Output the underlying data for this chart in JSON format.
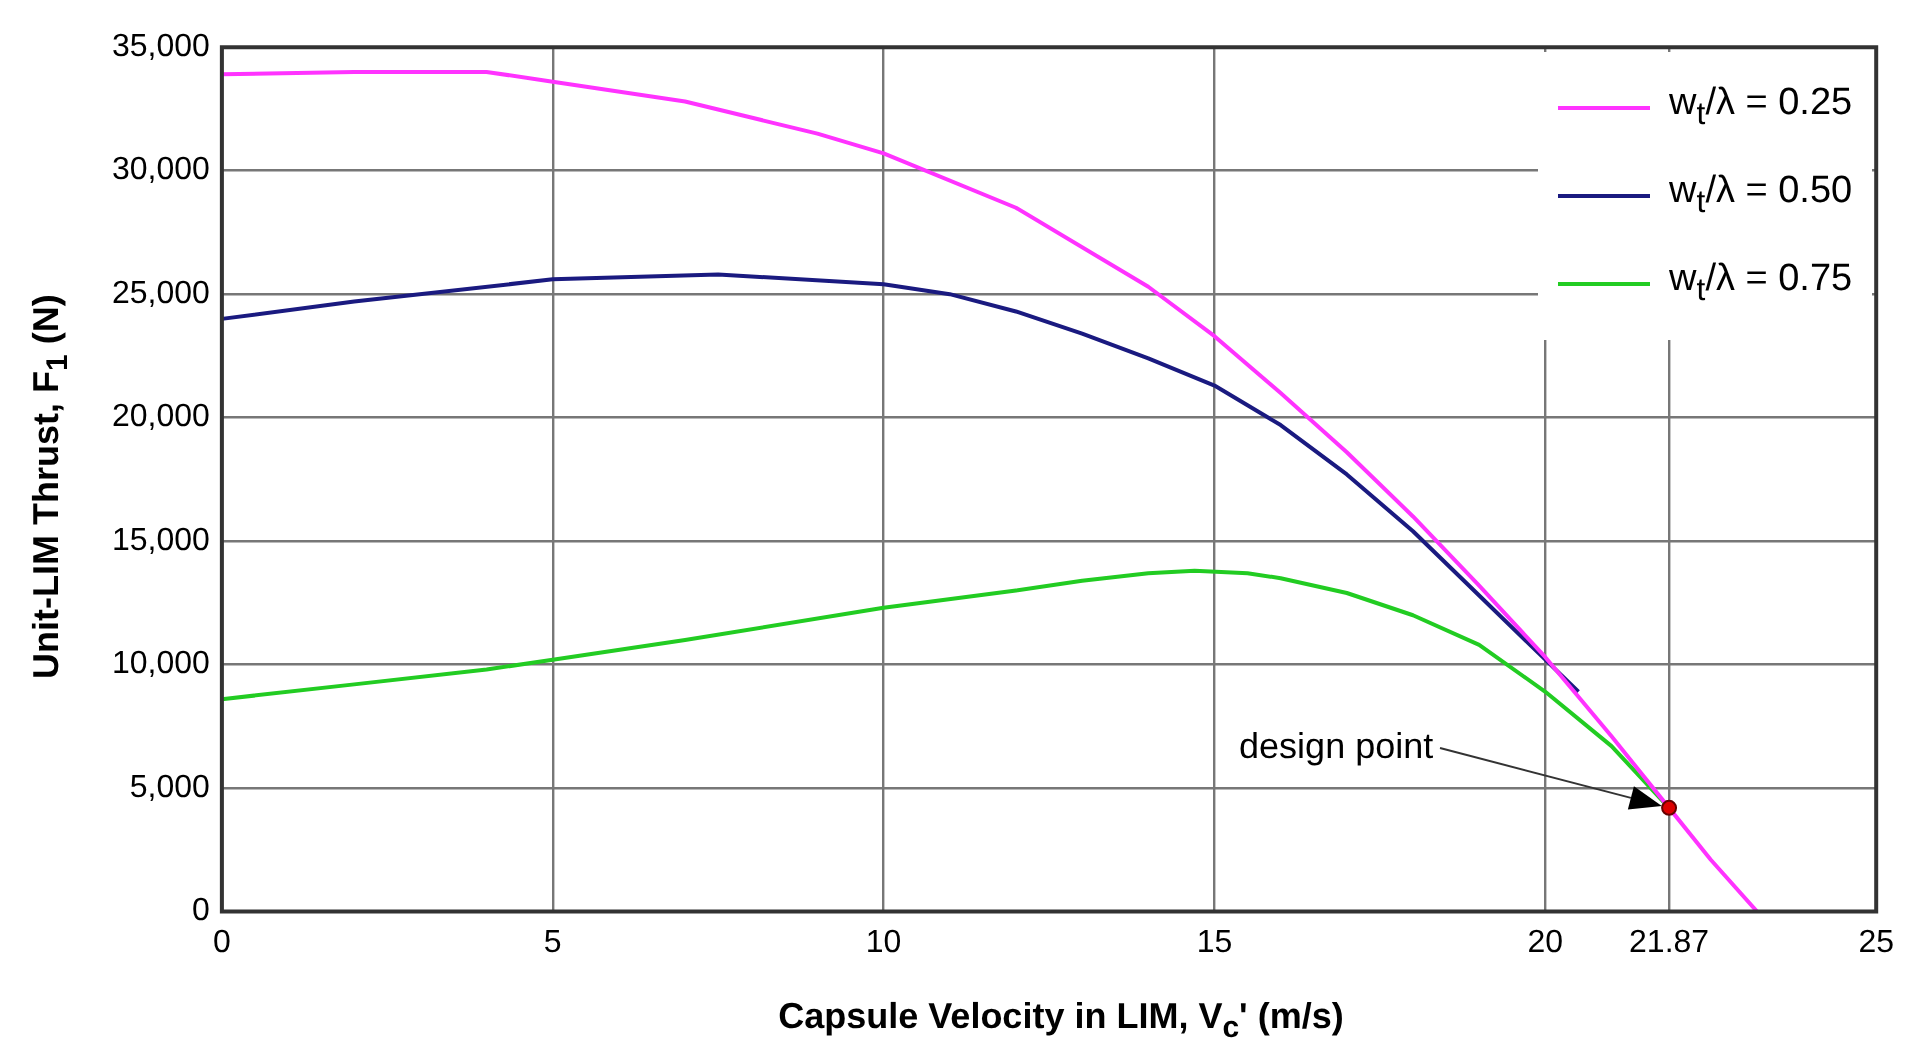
{
  "chart_data": {
    "type": "line",
    "xlabel": "Capsule Velocity in LIM, V$_{c}$' (m/s)",
    "ylabel": "Unit-LIM Thrust, F$_{1}$ (N)",
    "xlim": [
      0,
      25
    ],
    "xticks": [
      0,
      5,
      10,
      15,
      20,
      21.87,
      25
    ],
    "ylim": [
      0,
      35000
    ],
    "yticks": [
      0,
      {
        "value": 5000,
        "label": "5,000"
      },
      {
        "value": 10000,
        "label": "10,000"
      },
      {
        "value": 15000,
        "label": "15,000"
      },
      {
        "value": 20000,
        "label": "20,000"
      },
      {
        "value": 25000,
        "label": "25,000"
      },
      {
        "value": 30000,
        "label": "30,000"
      },
      {
        "value": 35000,
        "label": "35,000"
      }
    ],
    "grid": true,
    "legend": "top right",
    "marker": "none",
    "line_style": "solid",
    "series": [
      {
        "name": "w$_{t}$/λ = 0.25",
        "color": "#ff33ff",
        "x": [
          0,
          2,
          4,
          5,
          7,
          9,
          10,
          12,
          14,
          15,
          16,
          17,
          18,
          19,
          20,
          21,
          21.87,
          22.5,
          23.2
        ],
        "values": [
          33900,
          34000,
          34000,
          33600,
          32800,
          31500,
          30700,
          28500,
          25300,
          23300,
          21000,
          18600,
          16000,
          13200,
          10300,
          7100,
          4200,
          2100,
          0
        ]
      },
      {
        "name": "w$_{t}$/λ = 0.50",
        "color": "#1a1a80",
        "x": [
          0,
          2,
          5,
          7.5,
          10,
          11,
          12,
          13,
          14,
          15,
          16,
          17,
          18,
          19,
          20,
          20.5
        ],
        "values": [
          24000,
          24700,
          25600,
          25800,
          25400,
          25000,
          24300,
          23400,
          22400,
          21300,
          19700,
          17700,
          15400,
          12800,
          10200,
          8900
        ]
      },
      {
        "name": "w$_{t}$/λ = 0.75",
        "color": "#22cc22",
        "x": [
          0,
          2,
          4,
          5,
          7,
          10,
          12,
          13,
          14,
          14.7,
          15.5,
          16,
          17,
          18,
          19,
          20,
          21,
          21.87
        ],
        "values": [
          8600,
          9200,
          9800,
          10200,
          11000,
          12300,
          13000,
          13400,
          13700,
          13800,
          13700,
          13500,
          12900,
          12000,
          10800,
          8900,
          6700,
          4200
        ]
      },
      {
        "type": "scatter",
        "color": "#dd0000",
        "x": [
          21.87
        ],
        "values": [
          4200
        ],
        "marker": "circle"
      }
    ],
    "annotations": [
      "design point"
    ]
  }
}
